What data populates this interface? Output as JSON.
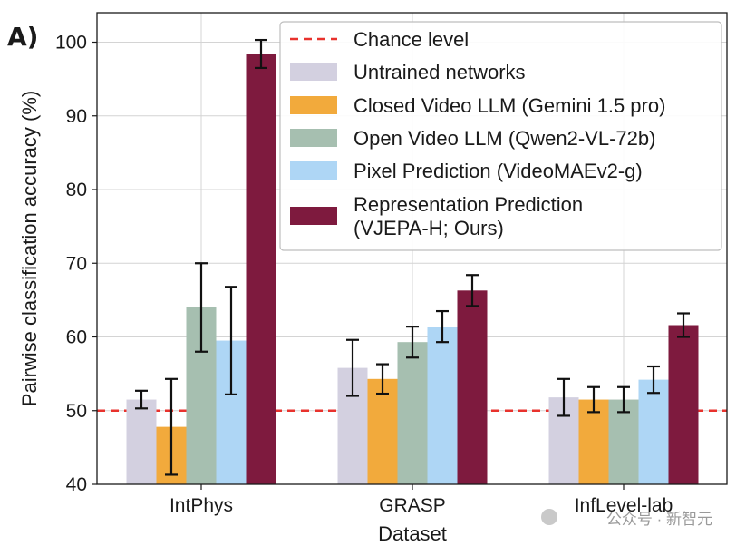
{
  "panel_label": "A)",
  "watermark": "公众号 · 新智元",
  "chart_data": {
    "type": "bar",
    "xlabel": "Dataset",
    "ylabel": "Pairwise classification accuracy (%)",
    "ylim": [
      40,
      104
    ],
    "yticks": [
      40,
      50,
      60,
      70,
      80,
      90,
      100
    ],
    "grid": true,
    "legend_position": "top-right",
    "categories": [
      "IntPhys",
      "GRASP",
      "InfLevel-lab"
    ],
    "reference_line": {
      "name": "Chance level",
      "value": 50,
      "color": "#e8322d",
      "style": "dashed"
    },
    "series": [
      {
        "name": "Untrained networks",
        "color": "#d3d0e0",
        "values": [
          51.5,
          55.8,
          51.8
        ],
        "errors": [
          1.2,
          3.8,
          2.5
        ]
      },
      {
        "name": "Closed Video LLM (Gemini 1.5 pro)",
        "color": "#f2aa3c",
        "values": [
          47.8,
          54.3,
          51.5
        ],
        "errors": [
          6.5,
          2.0,
          1.7
        ]
      },
      {
        "name": "Open Video LLM (Qwen2-VL-72b)",
        "color": "#a6bfb0",
        "values": [
          64.0,
          59.3,
          51.5
        ],
        "errors": [
          6.0,
          2.1,
          1.7
        ]
      },
      {
        "name": "Pixel Prediction (VideoMAEv2-g)",
        "color": "#aed6f5",
        "values": [
          59.5,
          61.4,
          54.2
        ],
        "errors": [
          7.3,
          2.1,
          1.8
        ]
      },
      {
        "name": "Representation Prediction\n(VJEPA-H; Ours)",
        "color": "#7e1a3e",
        "values": [
          98.4,
          66.3,
          61.6
        ],
        "errors": [
          1.9,
          2.1,
          1.6
        ]
      }
    ]
  }
}
